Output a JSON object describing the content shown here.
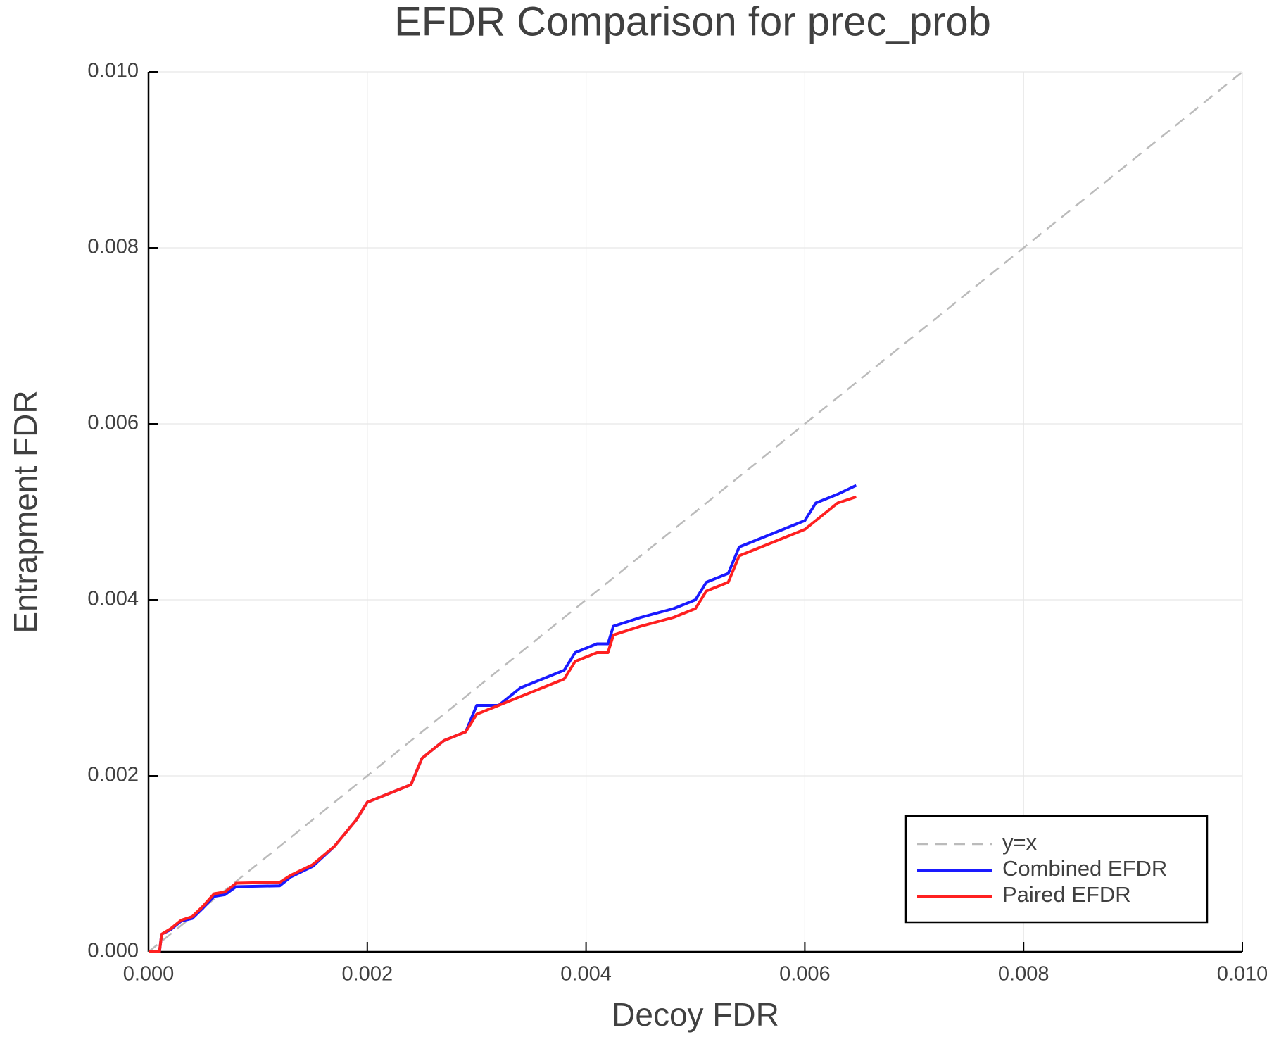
{
  "chart_data": {
    "type": "line",
    "title": "EFDR Comparison for prec_prob",
    "x_label": "Decoy FDR",
    "y_label": "Entrapment FDR",
    "xlim": [
      0,
      0.01
    ],
    "ylim": [
      0,
      0.01
    ],
    "xticks": [
      {
        "value": 0,
        "label": "0.000"
      },
      0.002,
      0.004,
      0.006,
      0.008,
      {
        "value": 0.01,
        "label": "0.010"
      }
    ],
    "yticks": [
      {
        "value": 0,
        "label": "0.000"
      },
      0.002,
      0.004,
      0.006,
      0.008,
      {
        "value": 0.01,
        "label": "0.010"
      }
    ],
    "grid": true,
    "legend": "bottom right",
    "series": [
      {
        "name": "y=x",
        "color": "#bbbbbb",
        "style": "dashed",
        "x": [
          0,
          0.01
        ],
        "values": [
          0,
          0.01
        ]
      },
      {
        "name": "Combined EFDR",
        "color": "#1a1aff",
        "style": "solid",
        "x": [
          0,
          0.0001,
          0.00012,
          0.0002,
          0.0003,
          0.0004,
          0.0005,
          0.0006,
          0.0007,
          0.0008,
          0.0012,
          0.0013,
          0.0015,
          0.0017,
          0.0019,
          0.002,
          0.0022,
          0.0024,
          0.0025,
          0.0027,
          0.0029,
          0.003,
          0.0032,
          0.0034,
          0.0036,
          0.0038,
          0.0039,
          0.0041,
          0.0042,
          0.00425,
          0.0045,
          0.0048,
          0.005,
          0.0051,
          0.0053,
          0.0054,
          0.0056,
          0.0058,
          0.006,
          0.0061,
          0.0063,
          0.00647
        ],
        "values": [
          0,
          0,
          0.0002,
          0.00025,
          0.00035,
          0.00038,
          0.0005,
          0.00063,
          0.00065,
          0.00074,
          0.00075,
          0.00085,
          0.00097,
          0.0012,
          0.0015,
          0.0017,
          0.0018,
          0.0019,
          0.0022,
          0.0024,
          0.0025,
          0.0028,
          0.0028,
          0.003,
          0.0031,
          0.0032,
          0.0034,
          0.0035,
          0.0035,
          0.0037,
          0.0038,
          0.0039,
          0.004,
          0.0042,
          0.0043,
          0.0046,
          0.0047,
          0.0048,
          0.0049,
          0.0051,
          0.0052,
          0.0053
        ]
      },
      {
        "name": "Paired EFDR",
        "color": "#ff2020",
        "style": "solid",
        "x": [
          0,
          0.0001,
          0.00012,
          0.0002,
          0.0003,
          0.0004,
          0.0005,
          0.0006,
          0.0007,
          0.0008,
          0.0012,
          0.0013,
          0.0015,
          0.0017,
          0.0019,
          0.002,
          0.0022,
          0.0024,
          0.0025,
          0.0027,
          0.0029,
          0.003,
          0.0032,
          0.0034,
          0.0036,
          0.0038,
          0.0039,
          0.0041,
          0.0042,
          0.00425,
          0.0045,
          0.0048,
          0.005,
          0.0051,
          0.0053,
          0.0054,
          0.0056,
          0.0058,
          0.006,
          0.0061,
          0.0063,
          0.00647
        ],
        "values": [
          0,
          0,
          0.0002,
          0.00026,
          0.00036,
          0.0004,
          0.00052,
          0.00066,
          0.00068,
          0.00078,
          0.00079,
          0.00087,
          0.00099,
          0.0012,
          0.0015,
          0.0017,
          0.0018,
          0.0019,
          0.0022,
          0.0024,
          0.0025,
          0.0027,
          0.0028,
          0.0029,
          0.003,
          0.0031,
          0.0033,
          0.0034,
          0.0034,
          0.0036,
          0.0037,
          0.0038,
          0.0039,
          0.0041,
          0.0042,
          0.0045,
          0.0046,
          0.0047,
          0.0048,
          0.0049,
          0.0051,
          0.00517
        ]
      }
    ]
  }
}
